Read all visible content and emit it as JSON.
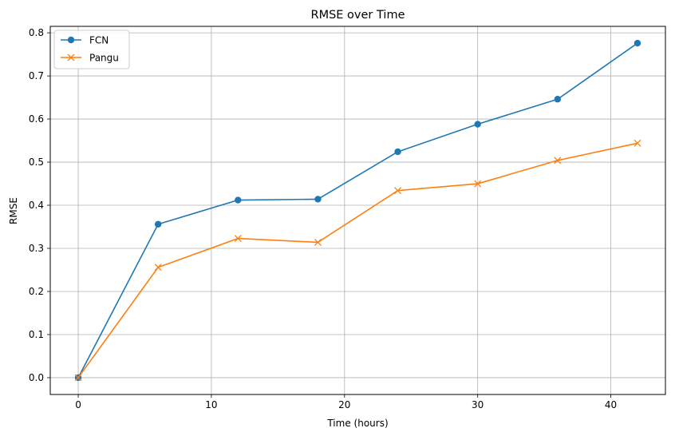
{
  "chart_data": {
    "type": "line",
    "title": "RMSE over Time",
    "xlabel": "Time (hours)",
    "ylabel": "RMSE",
    "xlim": [
      -2.1,
      44.1
    ],
    "ylim": [
      -0.039,
      0.815
    ],
    "x_ticks": [
      0,
      10,
      20,
      30,
      40
    ],
    "x_tick_labels": [
      "0",
      "10",
      "20",
      "30",
      "40"
    ],
    "y_ticks": [
      0.0,
      0.1,
      0.2,
      0.3,
      0.4,
      0.5,
      0.6,
      0.7,
      0.8
    ],
    "y_tick_labels": [
      "0.0",
      "0.1",
      "0.2",
      "0.3",
      "0.4",
      "0.5",
      "0.6",
      "0.7",
      "0.8"
    ],
    "grid": true,
    "legend_position": "top-left",
    "x": [
      0,
      6,
      12,
      18,
      24,
      30,
      36,
      42
    ],
    "series": [
      {
        "name": "FCN",
        "values": [
          0.0,
          0.356,
          0.412,
          0.414,
          0.524,
          0.588,
          0.646,
          0.776
        ],
        "color": "#1f77b4",
        "marker": "circle"
      },
      {
        "name": "Pangu",
        "values": [
          0.0,
          0.256,
          0.323,
          0.314,
          0.434,
          0.45,
          0.504,
          0.544
        ],
        "color": "#ff7f0e",
        "marker": "x"
      }
    ]
  }
}
